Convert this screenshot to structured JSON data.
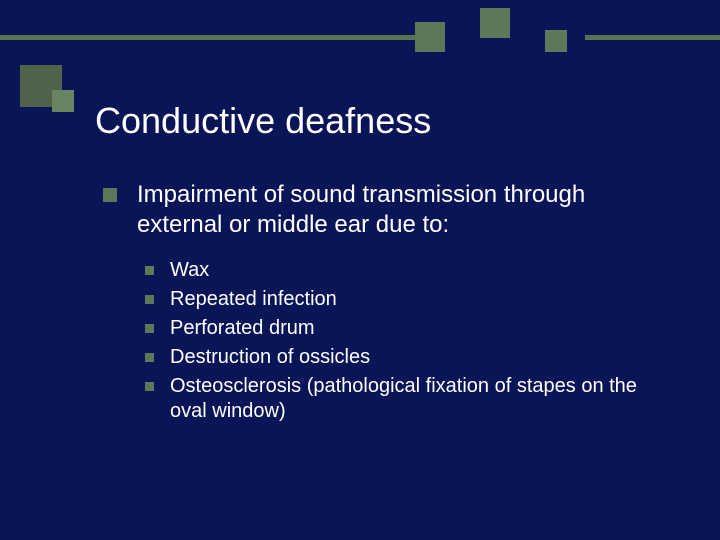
{
  "colors": {
    "background": "#0a1558",
    "accent": "#5e7758",
    "accent_dark": "#4e6349",
    "accent_light": "#6a8462",
    "text": "#ffffff"
  },
  "typography": {
    "title_fontsize": 36,
    "level1_fontsize": 24,
    "level2_fontsize": 20,
    "font_family": "Verdana"
  },
  "title": "Conductive deafness",
  "body": {
    "text": "Impairment of sound transmission through external or middle ear due to:",
    "sub_items": [
      "Wax",
      "Repeated infection",
      "Perforated drum",
      "Destruction of ossicles",
      "Osteosclerosis (pathological fixation of stapes on the oval window)"
    ]
  }
}
